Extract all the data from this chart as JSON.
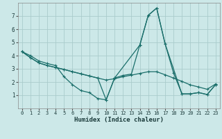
{
  "xlabel": "Humidex (Indice chaleur)",
  "bg_color": "#cce8e8",
  "grid_color": "#aacccc",
  "line_color": "#1a6e6a",
  "xlim": [
    -0.5,
    23.5
  ],
  "ylim": [
    0,
    8
  ],
  "xticks": [
    0,
    1,
    2,
    3,
    4,
    5,
    6,
    7,
    8,
    9,
    10,
    11,
    12,
    13,
    14,
    15,
    16,
    17,
    18,
    19,
    20,
    21,
    22,
    23
  ],
  "yticks": [
    1,
    2,
    3,
    4,
    5,
    6,
    7
  ],
  "series1_x": [
    0,
    1,
    2,
    3,
    4,
    5,
    6,
    7,
    8,
    9,
    10,
    11,
    12,
    13,
    14,
    15,
    16,
    17,
    18,
    19,
    20,
    21,
    22,
    23
  ],
  "series1_y": [
    4.3,
    4.0,
    3.6,
    3.4,
    3.25,
    2.4,
    1.8,
    1.35,
    1.2,
    0.75,
    0.65,
    2.3,
    2.5,
    2.6,
    4.8,
    7.05,
    7.6,
    4.9,
    2.7,
    1.1,
    1.1,
    1.2,
    1.05,
    1.8
  ],
  "series2_x": [
    0,
    1,
    2,
    3,
    4,
    5,
    6,
    7,
    8,
    9,
    10,
    11,
    12,
    13,
    14,
    15,
    16,
    17,
    18,
    19,
    20,
    21,
    22,
    23
  ],
  "series2_y": [
    4.3,
    3.85,
    3.45,
    3.25,
    3.1,
    2.95,
    2.78,
    2.62,
    2.46,
    2.3,
    2.15,
    2.25,
    2.4,
    2.52,
    2.65,
    2.78,
    2.78,
    2.55,
    2.3,
    2.05,
    1.78,
    1.62,
    1.45,
    1.85
  ],
  "series3_x": [
    0,
    1,
    2,
    3,
    4,
    5,
    6,
    7,
    8,
    9,
    10,
    11,
    14,
    15,
    16,
    17,
    19,
    20,
    21,
    22,
    23
  ],
  "series3_y": [
    4.3,
    3.85,
    3.45,
    3.25,
    3.1,
    2.95,
    2.78,
    2.62,
    2.46,
    2.3,
    0.65,
    2.3,
    4.8,
    7.05,
    7.6,
    4.9,
    1.1,
    1.1,
    1.2,
    1.05,
    1.8
  ]
}
